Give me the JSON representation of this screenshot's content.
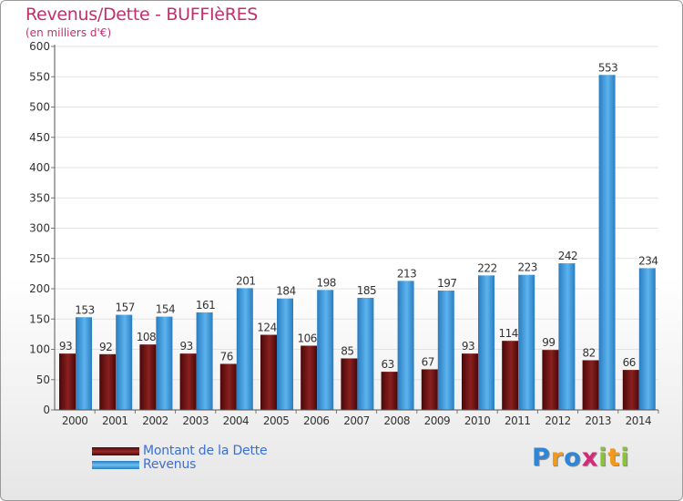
{
  "chart_data": {
    "type": "bar",
    "title": "Revenus/Dette - BUFFIèRES",
    "subtitle": "(en milliers d'€)",
    "categories": [
      "2000",
      "2001",
      "2002",
      "2003",
      "2004",
      "2005",
      "2006",
      "2007",
      "2008",
      "2009",
      "2010",
      "2011",
      "2012",
      "2013",
      "2014"
    ],
    "series": [
      {
        "name": "Montant de la Dette",
        "color": "#7a1818",
        "values": [
          93,
          92,
          108,
          93,
          76,
          124,
          106,
          85,
          63,
          67,
          93,
          114,
          99,
          82,
          66
        ]
      },
      {
        "name": "Revenus",
        "color": "#3b9ee0",
        "values": [
          153,
          157,
          154,
          161,
          201,
          184,
          198,
          185,
          213,
          197,
          222,
          223,
          242,
          553,
          234
        ]
      }
    ],
    "yticks": [
      0,
      50,
      100,
      150,
      200,
      250,
      300,
      350,
      400,
      450,
      500,
      550,
      600
    ],
    "ylim": [
      0,
      600
    ],
    "grid": true,
    "legend_position": "bottom-left"
  },
  "logo": {
    "letters": [
      "P",
      "r",
      "o",
      "x",
      "i",
      "t",
      "i"
    ],
    "colors": [
      "#2e86d8",
      "#f39a1a",
      "#2e86d8",
      "#d42a7a",
      "#8ac23a",
      "#f39a1a",
      "#8ac23a"
    ]
  }
}
